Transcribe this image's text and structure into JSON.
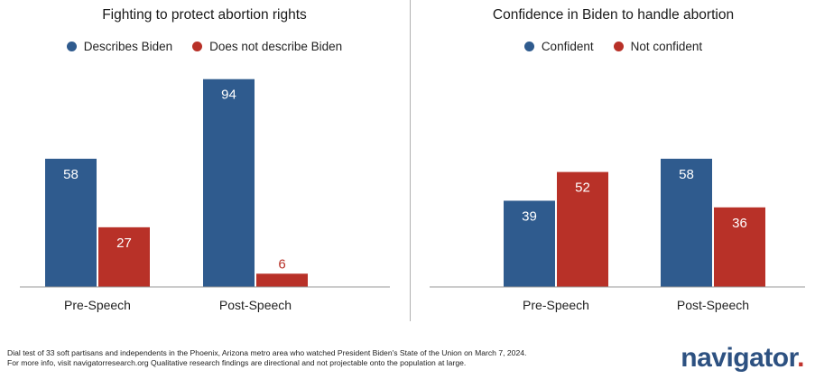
{
  "colors": {
    "blue": "#2f5b8e",
    "red": "#b83128",
    "axis": "#9a9a9a",
    "logo_blue": "#2d5181"
  },
  "chart_data": [
    {
      "type": "bar",
      "title": "Fighting to protect abortion rights",
      "categories": [
        "Pre-Speech",
        "Post-Speech"
      ],
      "series": [
        {
          "name": "Describes Biden",
          "values": [
            58,
            94
          ]
        },
        {
          "name": "Does not describe Biden",
          "values": [
            27,
            6
          ]
        }
      ],
      "ylim": [
        0,
        100
      ],
      "legend": "top-center",
      "grid": false
    },
    {
      "type": "bar",
      "title": "Confidence in Biden to handle abortion",
      "categories": [
        "Pre-Speech",
        "Post-Speech"
      ],
      "series": [
        {
          "name": "Confident",
          "values": [
            39,
            58
          ]
        },
        {
          "name": "Not confident",
          "values": [
            52,
            36
          ]
        }
      ],
      "ylim": [
        0,
        100
      ],
      "legend": "top-center",
      "grid": false
    }
  ],
  "footer": {
    "line1": "Dial test of 33 soft partisans and independents in the Phoenix, Arizona metro area who watched President Biden's State of the Union on March 7, 2024.",
    "line2": "For more info, visit navigatorresearch.org Qualitative research findings are directional and not projectable onto the population at large."
  },
  "logo": {
    "text": "navigator",
    "dot": "."
  }
}
